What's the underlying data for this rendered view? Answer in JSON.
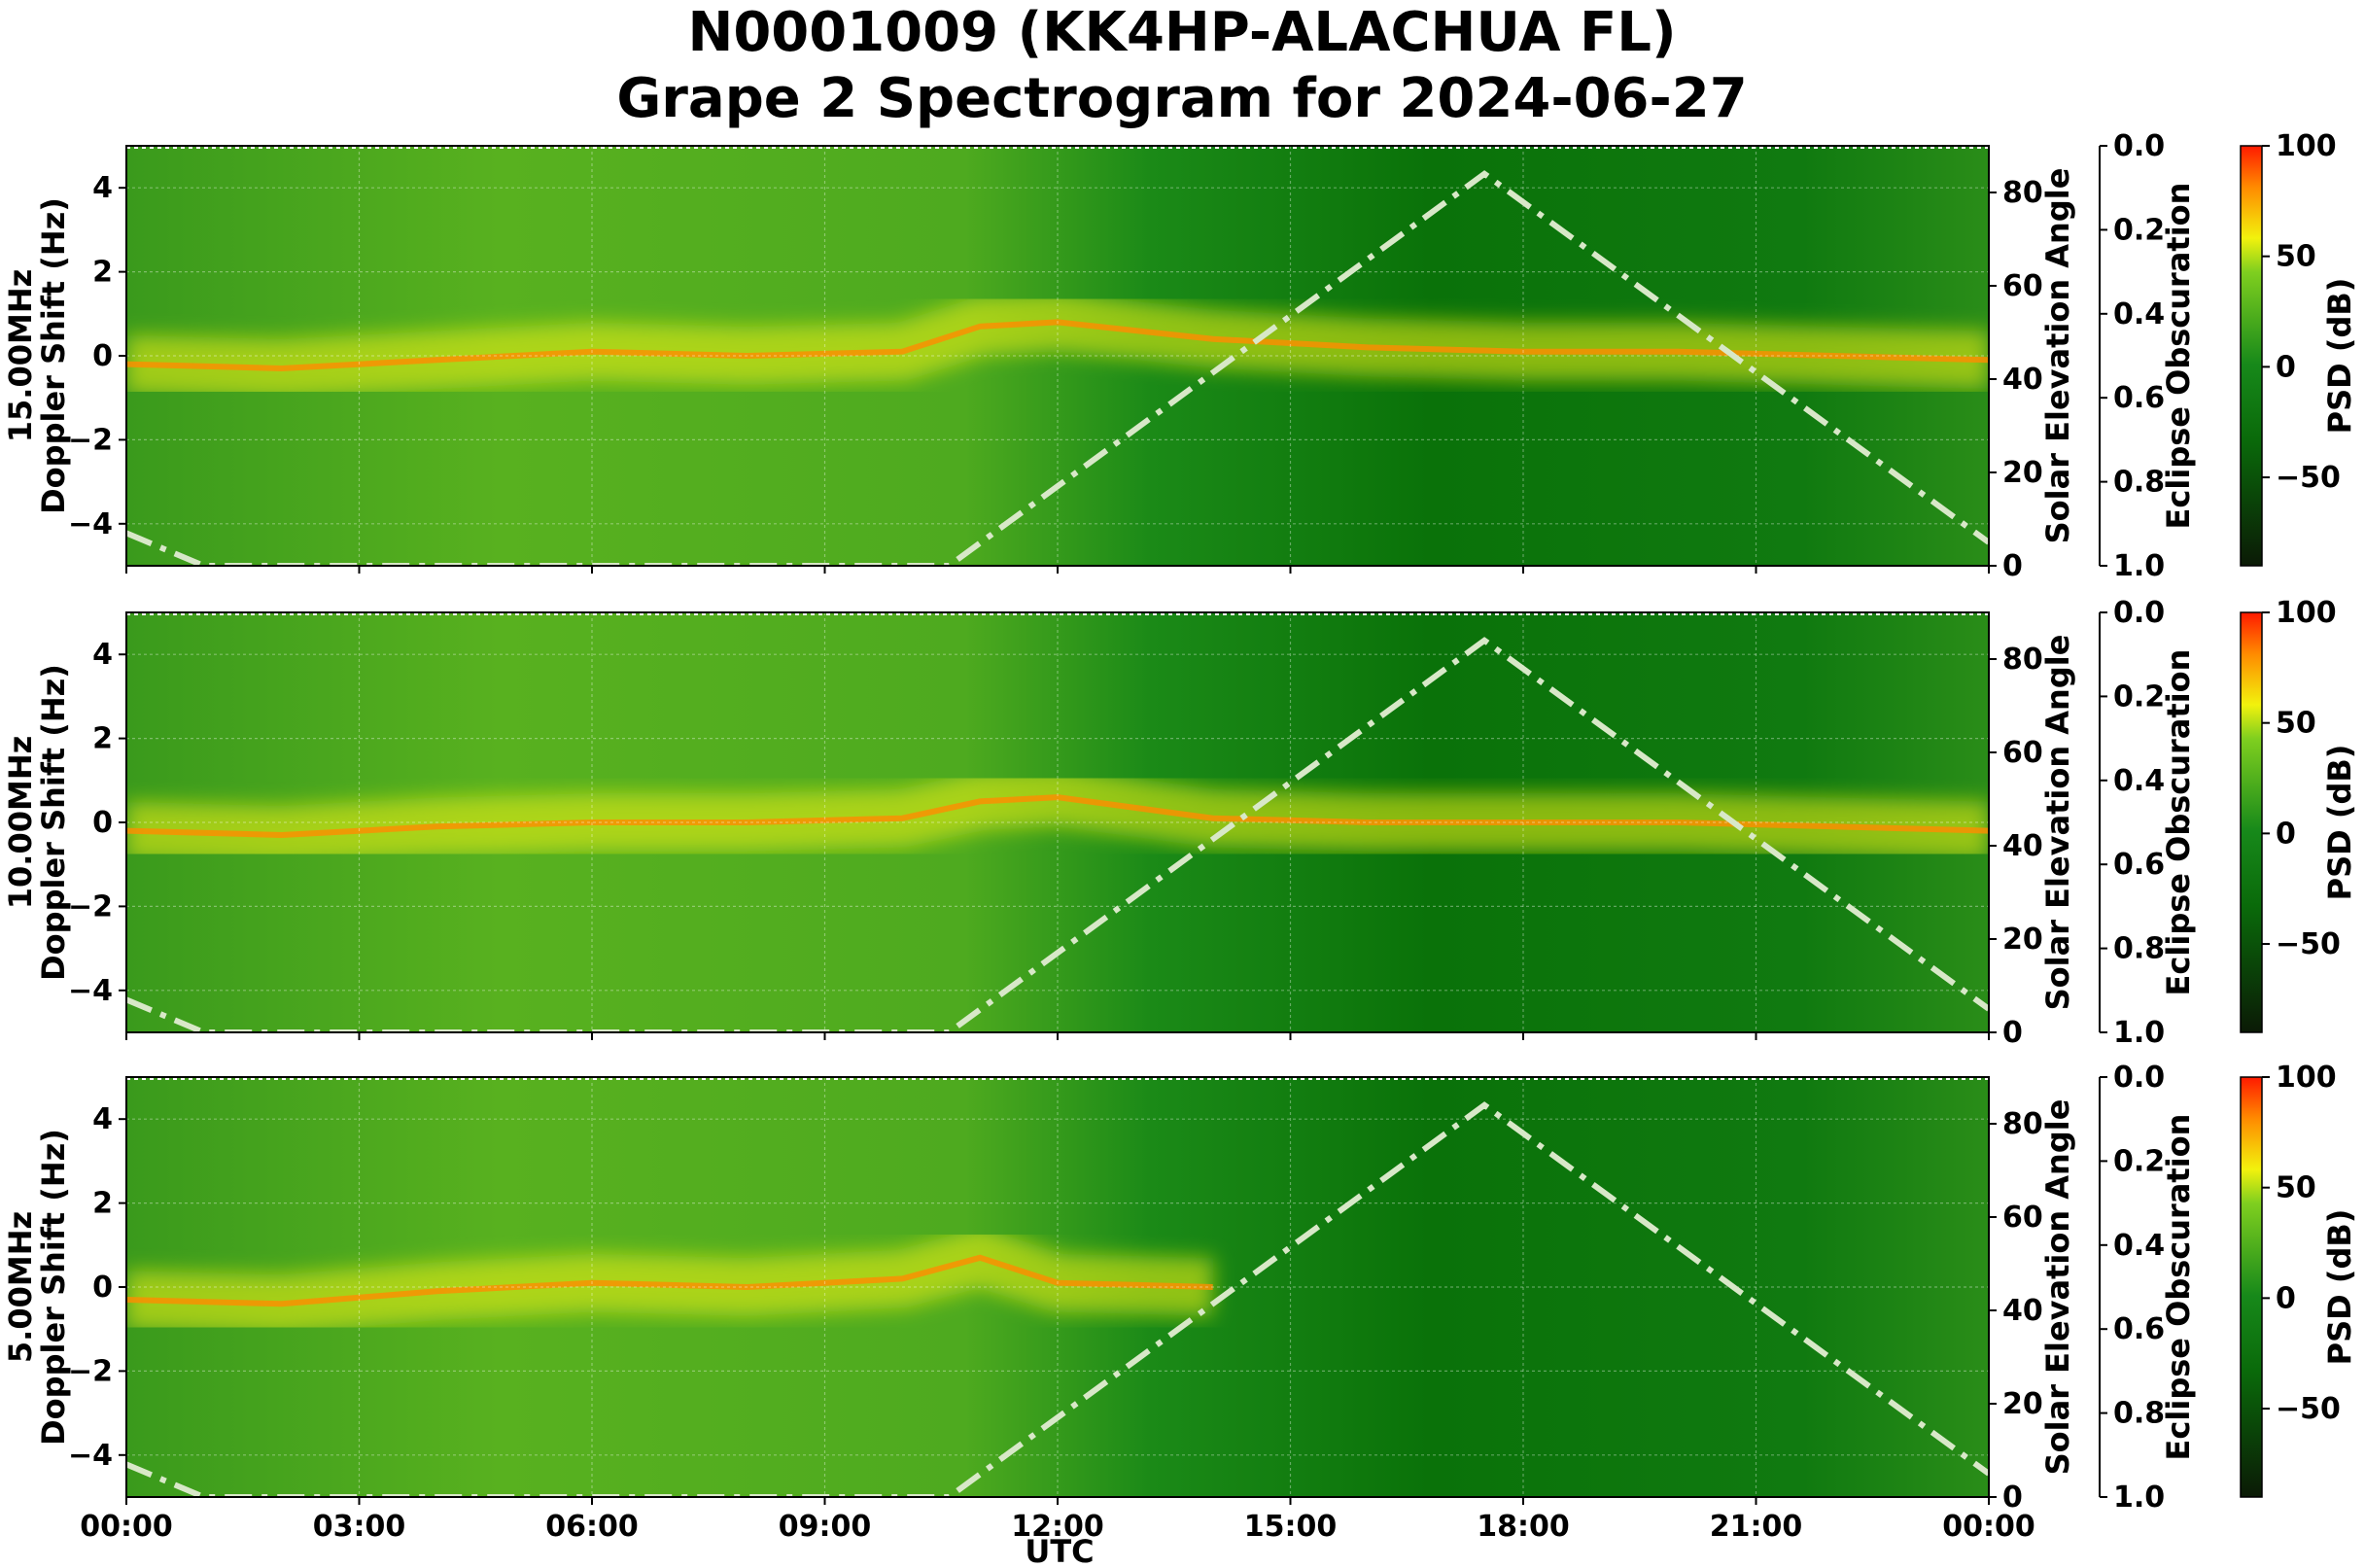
{
  "header": {
    "title_line1": "N0001009 (KK4HP-ALACHUA FL)",
    "title_line2": "Grape 2 Spectrogram for 2024-06-27"
  },
  "colors": {
    "background": "#ffffff",
    "low": "#0b1a06",
    "dark_green": "#0a6a0a",
    "green": "#17891a",
    "yellow_green": "#7fcf1f",
    "yellow": "#f2f20d",
    "orange": "#ff8c00",
    "red": "#ff1a00",
    "solar_curve": "#d8e8c8"
  },
  "chart_data": {
    "type": "heatmap",
    "x_axis": {
      "label": "UTC",
      "ticks": [
        "00:00",
        "03:00",
        "06:00",
        "09:00",
        "12:00",
        "15:00",
        "18:00",
        "21:00",
        "00:00"
      ],
      "range_hours": [
        0,
        24
      ]
    },
    "grid": true,
    "panels": [
      {
        "frequency_label": "15.00MHz",
        "ylabel": "Doppler Shift (Hz)",
        "ylim": [
          -5,
          5
        ],
        "yticks": [
          "4",
          "2",
          "0",
          "−2",
          "−4"
        ],
        "ytick_values": [
          4,
          2,
          0,
          -2,
          -4
        ],
        "carrier_trace": {
          "hours": [
            0,
            2,
            4,
            6,
            8,
            10,
            11,
            12,
            14,
            16,
            18,
            20,
            22,
            24
          ],
          "doppler": [
            -0.2,
            -0.3,
            -0.1,
            0.1,
            0.0,
            0.1,
            0.7,
            0.8,
            0.4,
            0.2,
            0.1,
            0.1,
            0.0,
            -0.1
          ]
        }
      },
      {
        "frequency_label": "10.00MHz",
        "ylabel": "Doppler Shift (Hz)",
        "ylim": [
          -5,
          5
        ],
        "yticks": [
          "4",
          "2",
          "0",
          "−2",
          "−4"
        ],
        "ytick_values": [
          4,
          2,
          0,
          -2,
          -4
        ],
        "carrier_trace": {
          "hours": [
            0,
            2,
            4,
            6,
            8,
            10,
            11,
            12,
            14,
            16,
            18,
            20,
            22,
            24
          ],
          "doppler": [
            -0.2,
            -0.3,
            -0.1,
            0.0,
            0.0,
            0.1,
            0.5,
            0.6,
            0.1,
            0.0,
            0.0,
            0.0,
            -0.1,
            -0.2
          ]
        }
      },
      {
        "frequency_label": "5.00MHz",
        "ylabel": "Doppler Shift (Hz)",
        "ylim": [
          -5,
          5
        ],
        "yticks": [
          "4",
          "2",
          "0",
          "−2",
          "−4"
        ],
        "ytick_values": [
          4,
          2,
          0,
          -2,
          -4
        ],
        "carrier_trace": {
          "hours": [
            0,
            2,
            4,
            6,
            8,
            10,
            11,
            12,
            14
          ],
          "doppler": [
            -0.3,
            -0.4,
            -0.1,
            0.1,
            0.0,
            0.2,
            0.7,
            0.1,
            0.0
          ]
        }
      }
    ],
    "solar_elevation": {
      "ylabel": "Solar Elevation Angle",
      "ylim": [
        0,
        90
      ],
      "yticks": [
        "0",
        "20",
        "40",
        "60",
        "80"
      ],
      "ytick_values": [
        0,
        20,
        40,
        60,
        80
      ],
      "hours": [
        0,
        1,
        10.6,
        17.5,
        24
      ],
      "angle": [
        7,
        0,
        0,
        84,
        5
      ]
    },
    "eclipse_obscuration": {
      "ylabel": "Eclipse Obscuration",
      "ylim": [
        1.0,
        0.0
      ],
      "yticks": [
        "0.0",
        "0.2",
        "0.4",
        "0.6",
        "0.8",
        "1.0"
      ],
      "ytick_values": [
        0.0,
        0.2,
        0.4,
        0.6,
        0.8,
        1.0
      ]
    },
    "colorbar": {
      "label": "PSD (dB)",
      "range": [
        -90,
        100
      ],
      "ticks": [
        "100",
        "50",
        "0",
        "−50"
      ],
      "tick_values": [
        100,
        50,
        0,
        -50
      ]
    }
  }
}
